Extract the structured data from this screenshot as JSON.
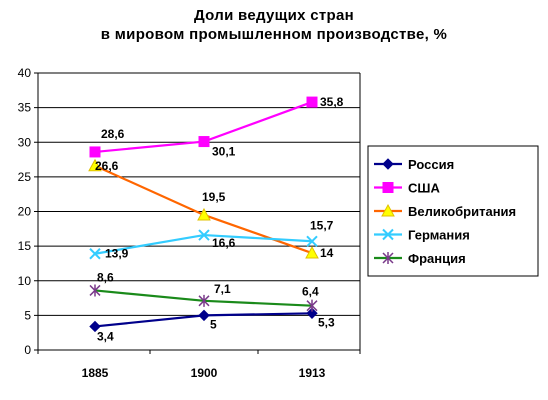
{
  "chart_data": {
    "type": "line",
    "title_line1": "Доли ведущих стран",
    "title_line2": "в мировом промышленном производстве, %",
    "x": [
      "1885",
      "1900",
      "1913"
    ],
    "ylim": [
      0,
      40
    ],
    "yticks": [
      0,
      5,
      10,
      15,
      20,
      25,
      30,
      35,
      40
    ],
    "grid": "horizontal",
    "legend_position": "right",
    "series": [
      {
        "name": "Россия",
        "values": [
          3.4,
          5,
          5.3
        ],
        "labels": [
          "3,4",
          "5",
          "5,3"
        ],
        "color": "#00008b",
        "marker": "diamond"
      },
      {
        "name": "США",
        "values": [
          28.6,
          30.1,
          35.8
        ],
        "labels": [
          "28,6",
          "30,1",
          "35,8"
        ],
        "color": "#ff00ff",
        "marker": "square"
      },
      {
        "name": "Великобритания",
        "values": [
          26.6,
          19.5,
          14
        ],
        "labels": [
          "26,6",
          "19,5",
          "14"
        ],
        "color": "#ff6600",
        "marker": "triangle"
      },
      {
        "name": "Германия",
        "values": [
          13.9,
          16.6,
          15.7
        ],
        "labels": [
          "13,9",
          "16,6",
          "15,7"
        ],
        "color": "#33ccff",
        "marker": "x"
      },
      {
        "name": "Франция",
        "values": [
          8.6,
          7.1,
          6.4
        ],
        "labels": [
          "8,6",
          "7,1",
          "6,4"
        ],
        "color": "#1a8a1a",
        "marker": "star"
      }
    ]
  }
}
